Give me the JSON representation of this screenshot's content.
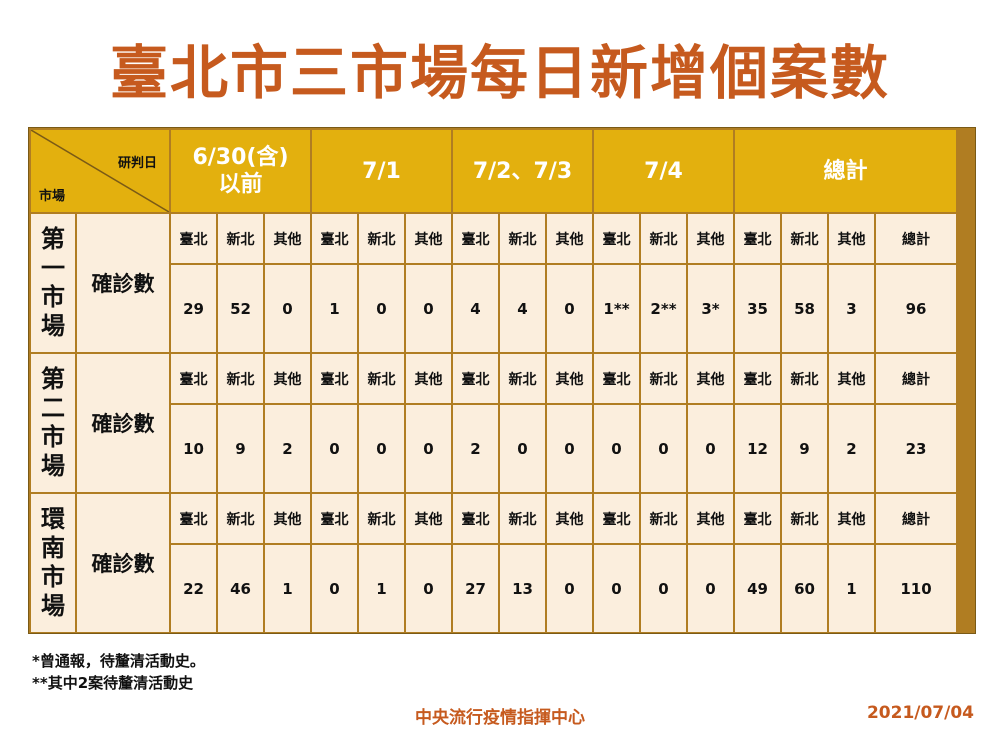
{
  "title": "臺北市三市場每日新增個案數",
  "corner": {
    "top_right": "研判日",
    "bottom_left": "市場"
  },
  "date_headers": [
    "6/30(含)\n以前",
    "7/1",
    "7/2、7/3",
    "7/4",
    "總計"
  ],
  "sub_headers": [
    "臺北",
    "新北",
    "其他",
    "臺北",
    "新北",
    "其他",
    "臺北",
    "新北",
    "其他",
    "臺北",
    "新北",
    "其他",
    "臺北",
    "新北",
    "其他",
    "總計"
  ],
  "markets": [
    {
      "name": "第一市場",
      "label": "確診數",
      "values": [
        "29",
        "52",
        "0",
        "1",
        "0",
        "0",
        "4",
        "4",
        "0",
        "1**",
        "2**",
        "3*",
        "35",
        "58",
        "3",
        "96"
      ]
    },
    {
      "name": "第二市場",
      "label": "確診數",
      "values": [
        "10",
        "9",
        "2",
        "0",
        "0",
        "0",
        "2",
        "0",
        "0",
        "0",
        "0",
        "0",
        "12",
        "9",
        "2",
        "23"
      ]
    },
    {
      "name": "環南市場",
      "label": "確診數",
      "values": [
        "22",
        "46",
        "1",
        "0",
        "1",
        "0",
        "27",
        "13",
        "0",
        "0",
        "0",
        "0",
        "49",
        "60",
        "1",
        "110"
      ]
    }
  ],
  "notes": [
    "*曾通報，待釐清活動史。",
    "**其中2案待釐清活動史"
  ],
  "footer": {
    "org": "中央流行疫情指揮中心",
    "date": "2021/07/04"
  },
  "colors": {
    "title": "#c65a1e",
    "header_gold": "#e3b00e",
    "cell_cream": "#fbeedd",
    "border": "#b07d22"
  }
}
